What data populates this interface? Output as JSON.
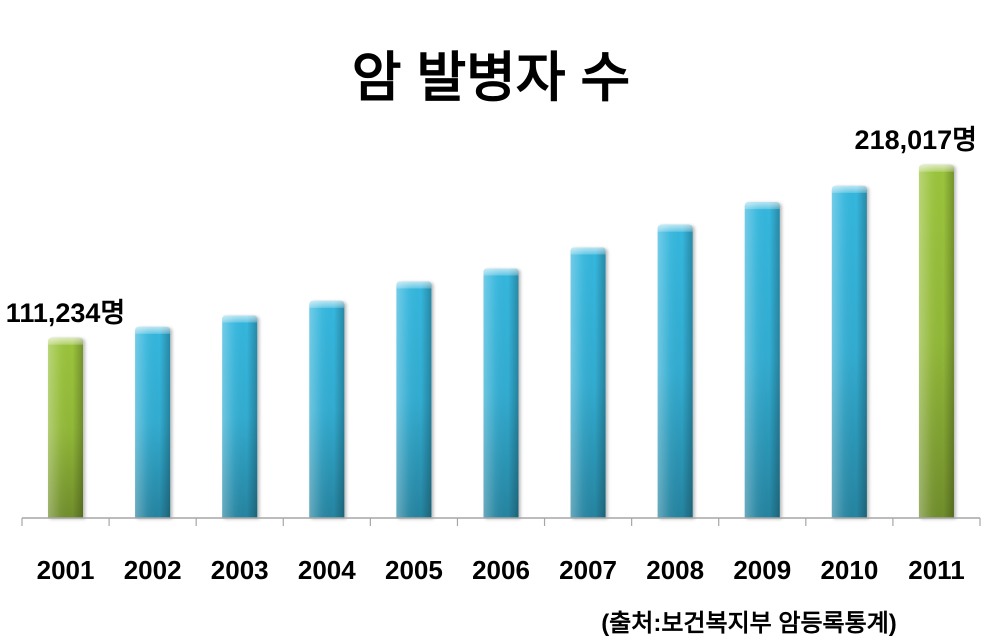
{
  "chart_data": {
    "type": "bar",
    "title": "암 발병자 수",
    "categories": [
      "2001",
      "2002",
      "2003",
      "2004",
      "2005",
      "2006",
      "2007",
      "2008",
      "2009",
      "2010",
      "2011"
    ],
    "values": [
      111234,
      118000,
      125000,
      134000,
      146000,
      154000,
      167000,
      181000,
      195000,
      205000,
      218017
    ],
    "data_labels": [
      "111,234명",
      null,
      null,
      null,
      null,
      null,
      null,
      null,
      null,
      null,
      "218,017명"
    ],
    "highlight": [
      true,
      false,
      false,
      false,
      false,
      false,
      false,
      false,
      false,
      false,
      true
    ],
    "ylim": [
      0,
      250000
    ],
    "grid": false,
    "source": "(출처:보건복지부 암등록통계)",
    "colors": {
      "bar": "#35b7de",
      "highlight": "#9bc43c",
      "axis": "#a6a6a6"
    }
  }
}
